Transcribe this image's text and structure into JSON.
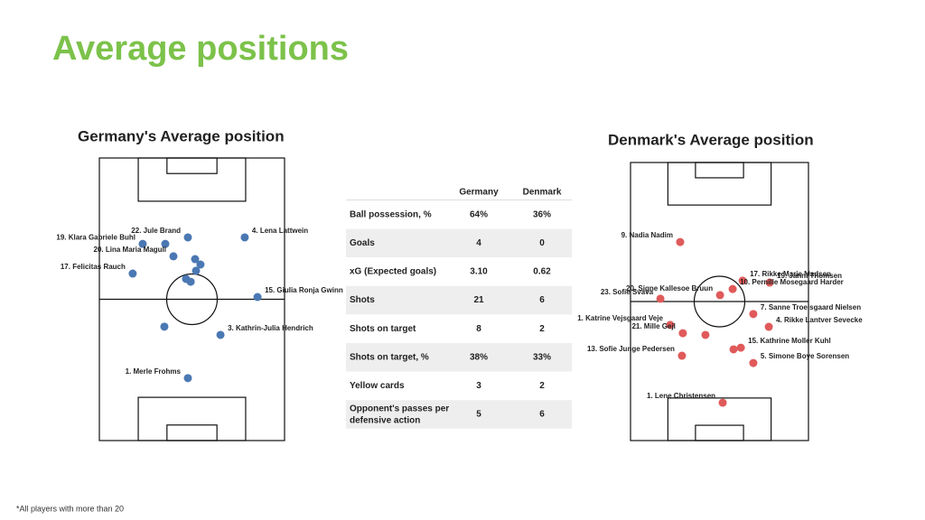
{
  "title": "Average positions",
  "germany": {
    "title": "Germany's Average position",
    "color": "#4a78b3",
    "players": [
      {
        "label": "19. Klara Gabriele Buhl",
        "x": 23.4,
        "y": 30.4
      },
      {
        "label": null,
        "x": 35.6,
        "y": 30.4
      },
      {
        "label": "22. Jule Brand",
        "x": 47.8,
        "y": 28.1
      },
      {
        "label": "4. Lena Lattwein",
        "x": 78.5,
        "y": 28.1
      },
      {
        "label": "20. Lina Maria Magull",
        "x": 40,
        "y": 34.8
      },
      {
        "label": null,
        "x": 51.7,
        "y": 35.8
      },
      {
        "label": null,
        "x": 54.6,
        "y": 37.7
      },
      {
        "label": null,
        "x": 52.2,
        "y": 39.9
      },
      {
        "label": "17. Felicitas Rauch",
        "x": 18,
        "y": 40.9
      },
      {
        "label": null,
        "x": 46.8,
        "y": 42.8
      },
      {
        "label": null,
        "x": 49.3,
        "y": 43.8
      },
      {
        "label": "15. Giulia Ronja Gwinn",
        "x": 85.4,
        "y": 49.2
      },
      {
        "label": null,
        "x": 35.1,
        "y": 59.7
      },
      {
        "label": "3. Kathrin-Julia Hendrich",
        "x": 65.4,
        "y": 62.6
      },
      {
        "label": "1. Merle Frohms",
        "x": 47.8,
        "y": 77.9
      }
    ]
  },
  "denmark": {
    "title": "Denmark's Average position",
    "color": "#e05a5a",
    "players": [
      {
        "label": "9. Nadia Nadim",
        "x": 27.9,
        "y": 28.6
      },
      {
        "label": "17. Rikke Marie Madsen",
        "x": 63,
        "y": 42.5
      },
      {
        "label": "19. Janni Thomsen",
        "x": 78.2,
        "y": 43.2
      },
      {
        "label": "10. Pernille Mosegaard Harder",
        "x": 57.4,
        "y": 45.5
      },
      {
        "label": "20. Signe Kallesoe Bruun",
        "x": 50.3,
        "y": 47.7
      },
      {
        "label": "23. Sofie Svava",
        "x": 16.8,
        "y": 49
      },
      {
        "label": "7. Sanne Troelsgaard Nielsen",
        "x": 69,
        "y": 54.5
      },
      {
        "label": "1. Katrine Vejsgaard Veje",
        "x": 22.3,
        "y": 58.4
      },
      {
        "label": "4. Rikke Lantver Sevecke",
        "x": 77.7,
        "y": 59.1
      },
      {
        "label": "21. Mille Gejl",
        "x": 29.4,
        "y": 61.4
      },
      {
        "label": null,
        "x": 42.1,
        "y": 62
      },
      {
        "label": null,
        "x": 57.9,
        "y": 67.2
      },
      {
        "label": "15. Kathrine Moller Kuhl",
        "x": 62,
        "y": 66.6
      },
      {
        "label": "13. Sofie Junge Pedersen",
        "x": 28.9,
        "y": 69.5
      },
      {
        "label": "5. Simone Boye Sorensen",
        "x": 69,
        "y": 72.1
      },
      {
        "label": "1. Lene Christensen",
        "x": 51.8,
        "y": 86.4
      }
    ]
  },
  "table": {
    "columns": [
      "Germany",
      "Denmark"
    ],
    "rows": [
      [
        "Ball possession, %",
        "64%",
        "36%"
      ],
      [
        "Goals",
        "4",
        "0"
      ],
      [
        "xG (Expected goals)",
        "3.10",
        "0.62"
      ],
      [
        "Shots",
        "21",
        "6"
      ],
      [
        "Shots on target",
        "8",
        "2"
      ],
      [
        "Shots on target, %",
        "38%",
        "33%"
      ],
      [
        "Yellow cards",
        "3",
        "2"
      ],
      [
        "Opponent's passes per defensive action",
        "5",
        "6"
      ]
    ]
  },
  "footnote": "*All players with more than 20"
}
